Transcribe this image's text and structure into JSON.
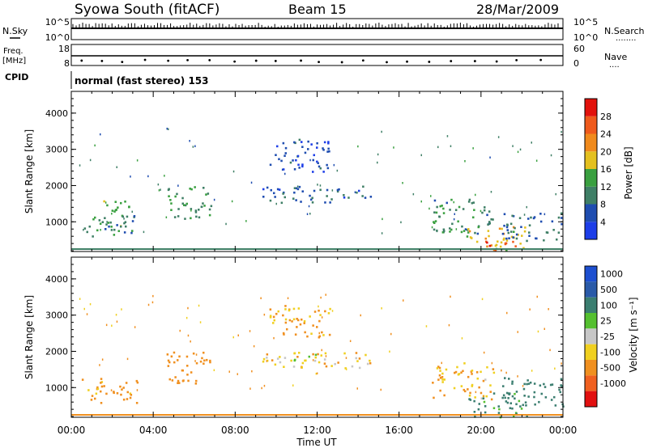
{
  "header": {
    "station": "Syowa South (fitACF)",
    "beam": "Beam 15",
    "date": "28/Mar/2009"
  },
  "strips": {
    "nsky_label": "N.Sky",
    "nsearch_label": "N.Search",
    "nsearch_dots": "........",
    "freq_label": "Freq.",
    "freq_unit": "[MHz]",
    "nave_label": "Nave",
    "nave_dots": "....",
    "cpid_label": "CPID",
    "cpid_text": "normal (fast stereo) 153",
    "nsky_ticks": [
      "10^5",
      "10^0"
    ],
    "nsearch_ticks": [
      "10^5",
      "10^0"
    ],
    "freq_ticks": [
      "18",
      "8"
    ],
    "nave_ticks": [
      "60",
      "0"
    ]
  },
  "colors": {
    "power": [
      "#1d3ee8",
      "#1f4db0",
      "#3f7f66",
      "#3aa040",
      "#e4c01f",
      "#f08a1c",
      "#ef5a1c",
      "#e2120c"
    ],
    "velocity": [
      "#1d4fd0",
      "#2a5aa8",
      "#3b7e70",
      "#55c030",
      "#c7c7c7",
      "#f0d020",
      "#f09020",
      "#f06020",
      "#e21010"
    ]
  },
  "chart_data": [
    {
      "type": "heatmap",
      "name": "power",
      "ylabel": "Slant Range [km]",
      "xlabel": "Time UT",
      "y_ticks": [
        1000,
        2000,
        3000,
        4000
      ],
      "ylim": [
        180,
        4600
      ],
      "x_ticks": [
        "00:00",
        "04:00",
        "08:00",
        "12:00",
        "16:00",
        "20:00",
        "00:00"
      ],
      "xlim_hours": [
        0,
        24
      ],
      "colorbar": {
        "label": "Power [dB]",
        "ticks": [
          4,
          8,
          12,
          16,
          20,
          24,
          28
        ],
        "range": [
          0,
          32
        ]
      },
      "regions": [
        {
          "t": [
            0.5,
            3.2
          ],
          "r": [
            600,
            1200
          ],
          "value": 10
        },
        {
          "t": [
            1.5,
            2.8
          ],
          "r": [
            800,
            1600
          ],
          "value": 14
        },
        {
          "t": [
            4.6,
            6.8
          ],
          "r": [
            1100,
            2000
          ],
          "value": 12
        },
        {
          "t": [
            9.3,
            14.8
          ],
          "r": [
            1550,
            2000
          ],
          "value": 7
        },
        {
          "t": [
            9.6,
            12.6
          ],
          "r": [
            2400,
            3300
          ],
          "value": 5
        },
        {
          "t": [
            17.6,
            20.6
          ],
          "r": [
            700,
            1700
          ],
          "value": 11
        },
        {
          "t": [
            19.2,
            22.2
          ],
          "r": [
            200,
            900
          ],
          "value": 18
        },
        {
          "t": [
            20.2,
            21.8
          ],
          "r": [
            200,
            500
          ],
          "value": 28
        },
        {
          "t": [
            21.0,
            24.0
          ],
          "r": [
            500,
            1300
          ],
          "value": 8
        }
      ]
    },
    {
      "type": "heatmap",
      "name": "velocity",
      "ylabel": "Slant Range [km]",
      "xlabel": "Time UT",
      "y_ticks": [
        1000,
        2000,
        3000,
        4000
      ],
      "ylim": [
        180,
        4600
      ],
      "x_ticks": [
        "00:00",
        "04:00",
        "08:00",
        "12:00",
        "16:00",
        "20:00",
        "00:00"
      ],
      "xlim_hours": [
        0,
        24
      ],
      "colorbar": {
        "label": "Velocity [m s⁻¹]",
        "ticks": [
          "1000",
          "500",
          "100",
          "25",
          "-25",
          "-100",
          "-500",
          "-1000"
        ]
      },
      "regions": [
        {
          "t": [
            0.5,
            3.2
          ],
          "r": [
            600,
            1300
          ],
          "value": -150
        },
        {
          "t": [
            4.6,
            6.8
          ],
          "r": [
            1100,
            2000
          ],
          "value": -200
        },
        {
          "t": [
            9.3,
            14.8
          ],
          "r": [
            1550,
            2000
          ],
          "value": -60
        },
        {
          "t": [
            10.5,
            12.3
          ],
          "r": [
            1700,
            1950
          ],
          "value": 0
        },
        {
          "t": [
            9.6,
            12.6
          ],
          "r": [
            2400,
            3300
          ],
          "value": -120
        },
        {
          "t": [
            17.6,
            20.6
          ],
          "r": [
            700,
            1700
          ],
          "value": -100
        },
        {
          "t": [
            19.2,
            22.2
          ],
          "r": [
            200,
            900
          ],
          "value": 150
        },
        {
          "t": [
            21.0,
            24.0
          ],
          "r": [
            500,
            1300
          ],
          "value": 300
        }
      ]
    }
  ]
}
